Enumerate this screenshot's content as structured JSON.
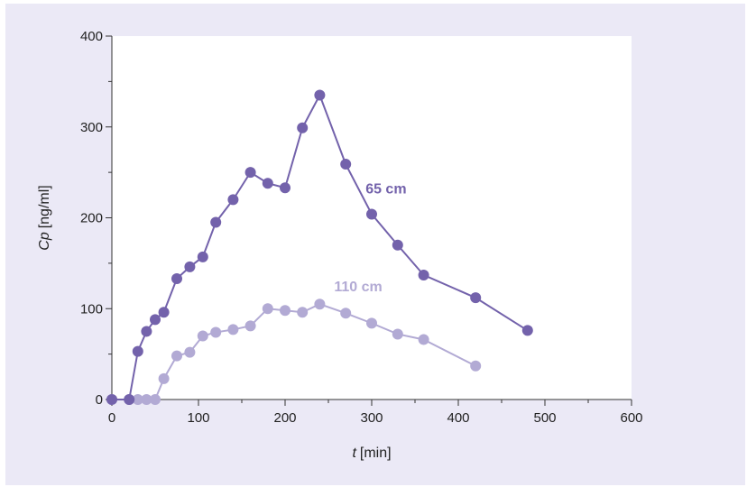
{
  "chart_data": {
    "type": "line",
    "xlabel": {
      "var": "t",
      "unit": "[min]"
    },
    "ylabel": {
      "var": "Cp",
      "unit": "[ng/ml]"
    },
    "xlim": [
      0,
      600
    ],
    "ylim": [
      0,
      400
    ],
    "xticks": [
      0,
      100,
      200,
      300,
      400,
      500,
      600
    ],
    "yticks": [
      0,
      100,
      200,
      300,
      400
    ],
    "grid": false,
    "series": [
      {
        "name": "65 cm",
        "color": "#7362ab",
        "x": [
          0,
          20,
          30,
          40,
          50,
          60,
          75,
          90,
          105,
          120,
          140,
          160,
          180,
          200,
          220,
          240,
          270,
          300,
          330,
          360,
          420,
          480
        ],
        "y": [
          0,
          0,
          53,
          75,
          88,
          96,
          133,
          146,
          157,
          195,
          220,
          250,
          238,
          233,
          299,
          335,
          259,
          204,
          170,
          137,
          112,
          76
        ]
      },
      {
        "name": "110 cm",
        "color": "#b2aad4",
        "x": [
          0,
          20,
          30,
          40,
          50,
          60,
          75,
          90,
          105,
          120,
          140,
          160,
          180,
          200,
          220,
          240,
          270,
          300,
          330,
          360,
          420
        ],
        "y": [
          0,
          0,
          0,
          0,
          0,
          23,
          48,
          52,
          70,
          74,
          77,
          81,
          100,
          98,
          96,
          105,
          95,
          84,
          72,
          66,
          37
        ]
      }
    ]
  }
}
